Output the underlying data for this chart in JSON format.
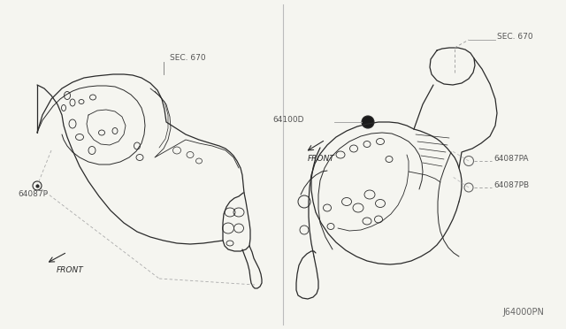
{
  "bg_color": "#f5f5f0",
  "line_color": "#2a2a2a",
  "label_color": "#555555",
  "fig_width": 6.4,
  "fig_height": 3.72,
  "left_sec670": "SEC. 670",
  "left_part": "64087P",
  "left_front": "FRONT",
  "right_sec670": "SEC. 670",
  "right_64100d": "64100D",
  "right_64087pa": "64087PA",
  "right_64087pb": "64087PB",
  "right_front": "FRONT",
  "footer": "J64000PN"
}
